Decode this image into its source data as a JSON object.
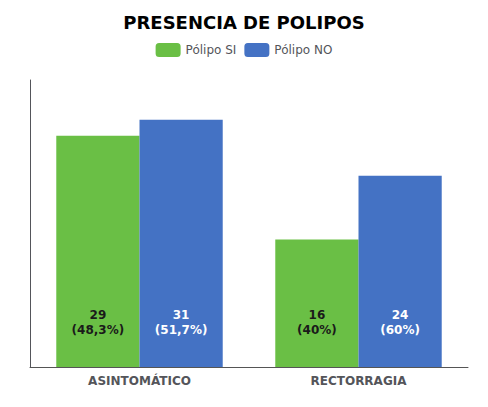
{
  "chart_data": {
    "type": "bar",
    "title": "PRESENCIA DE POLIPOS",
    "categories": [
      "ASINTOMÁTICO",
      "RECTORRAGIA"
    ],
    "series": [
      {
        "name": "Pólipo SI",
        "color": "#6abf45",
        "values": [
          29,
          16
        ],
        "value_labels": [
          "29\n(48,3%)",
          "16\n(40%)"
        ]
      },
      {
        "name": "Pólipo NO",
        "color": "#4472c4",
        "values": [
          31,
          24
        ],
        "value_labels": [
          "31\n(51,7%)",
          "24\n(60%)"
        ]
      }
    ],
    "ylim": [
      0,
      36
    ],
    "yticks": [],
    "grid": false,
    "legend": "top",
    "data_labels": true,
    "tick_labels": "x"
  }
}
